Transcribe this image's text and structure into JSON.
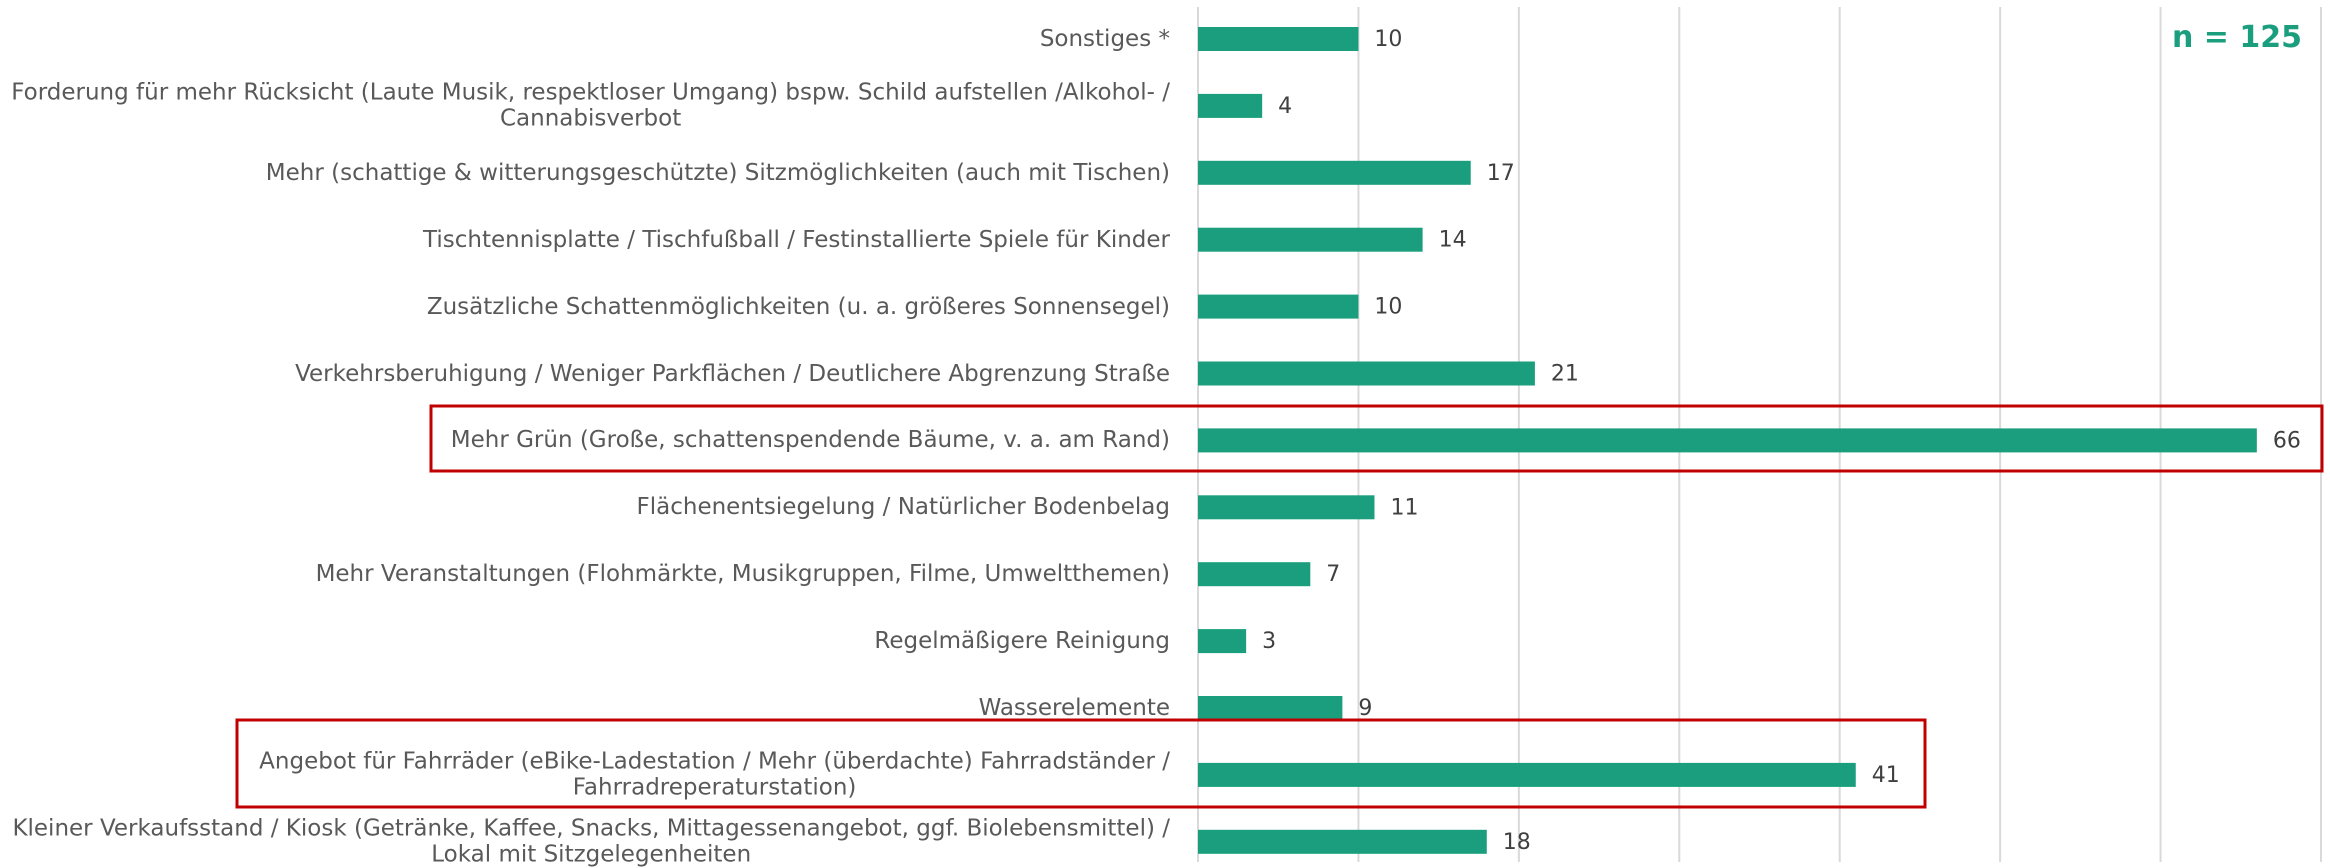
{
  "chart_data": {
    "type": "hbar",
    "annotation": "n = 125",
    "categories": [
      "Sonstiges *",
      "Forderung für mehr Rücksicht (Laute Musik, respektloser Umgang) bspw. Schild aufstellen /Alkohol- /\nCannabisverbot",
      "Mehr (schattige & witterungsgeschützte) Sitzmöglichkeiten (auch mit Tischen)",
      "Tischtennisplatte / Tischfußball / Festinstallierte Spiele für Kinder",
      "Zusätzliche Schattenmöglichkeiten (u. a. größeres Sonnensegel)",
      "Verkehrsberuhigung / Weniger Parkflächen / Deutlichere Abgrenzung Straße",
      "Mehr Grün (Große, schattenspendende Bäume, v. a. am Rand)",
      "Flächenentsiegelung / Natürlicher Bodenbelag",
      "Mehr Veranstaltungen (Flohmärkte, Musikgruppen, Filme, Umweltthemen)",
      "Regelmäßigere Reinigung",
      "Wasserelemente",
      "Angebot für Fahrräder (eBike-Ladestation / Mehr (überdachte) Fahrradständer /\nFahrradreperaturstation)",
      "Kleiner Verkaufsstand / Kiosk (Getränke, Kaffee, Snacks, Mittagessenangebot, ggf. Biolebensmittel) /\nLokal mit Sitzgelegenheiten"
    ],
    "values": [
      10,
      4,
      17,
      14,
      10,
      21,
      66,
      11,
      7,
      3,
      9,
      41,
      18
    ],
    "color": "#1a9e7e",
    "xlim": [
      0,
      70
    ],
    "xticks": [
      0,
      10,
      20,
      30,
      40,
      50,
      60,
      70
    ],
    "grid": true
  }
}
